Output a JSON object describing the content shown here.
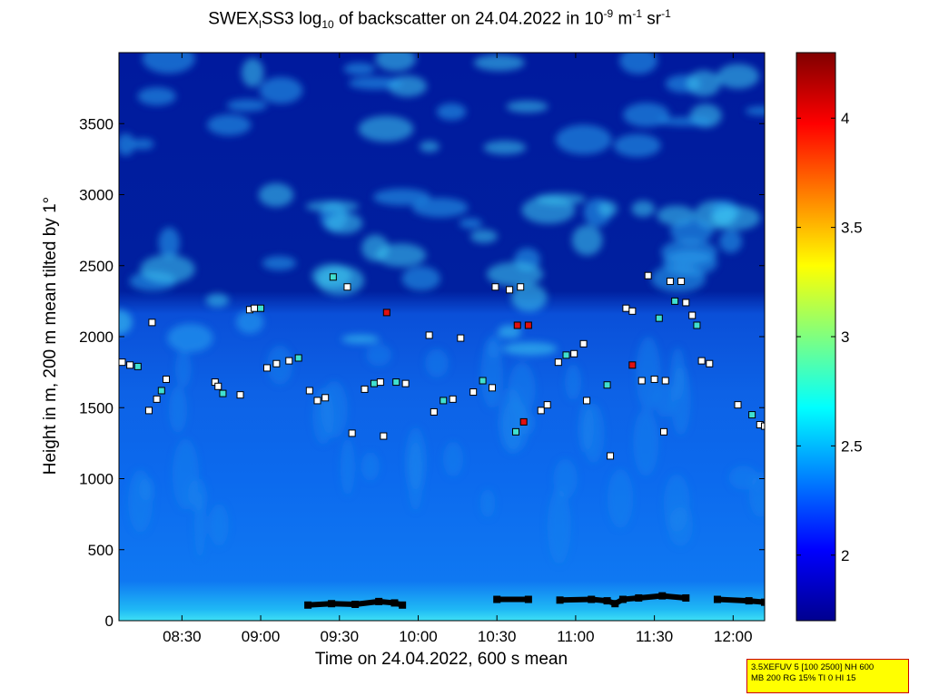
{
  "chart_data": {
    "type": "heatmap",
    "title_parts": {
      "a": "SWEX",
      "a_sub": "l",
      "b": "SS3 log",
      "b_sub": "10",
      "c": " of backscatter on 24.04.2022 in 10",
      "c_sup": "-9",
      "d": " m",
      "d_sup": "-1",
      "e": " sr",
      "e_sup": "-1"
    },
    "xlabel": "Time on 24.04.2022, 600 s mean",
    "ylabel": "Height in m, 200 m mean tilted by 1°",
    "x_ticks": [
      "08:30",
      "09:00",
      "09:30",
      "10:00",
      "10:30",
      "11:00",
      "11:30",
      "12:00"
    ],
    "x_tick_hours": [
      8.5,
      9.0,
      9.5,
      10.0,
      10.5,
      11.0,
      11.5,
      12.0
    ],
    "xlim_hours": [
      8.1,
      12.2
    ],
    "y_ticks": [
      0,
      500,
      1000,
      1500,
      2000,
      2500,
      3000,
      3500
    ],
    "ylim": [
      0,
      4000
    ],
    "colorbar": {
      "ticks": [
        "2",
        "2.5",
        "3",
        "3.5",
        "4"
      ],
      "tick_values": [
        2,
        2.5,
        3,
        3.5,
        4
      ],
      "range": [
        1.7,
        4.3
      ],
      "colormap": "jet"
    },
    "regions": [
      {
        "from_m": 2200,
        "to_m": 4000,
        "value": 1.8
      },
      {
        "from_m": 1600,
        "to_m": 2200,
        "value": 2.3
      },
      {
        "from_m": 200,
        "to_m": 1600,
        "value": 2.35
      },
      {
        "from_m": 0,
        "to_m": 200,
        "value": 2.5
      }
    ],
    "series": [
      {
        "marker": "cloud base",
        "points": [
          [
            8.12,
            1820
          ],
          [
            8.17,
            1800
          ],
          [
            8.22,
            1790
          ],
          [
            8.29,
            1480
          ],
          [
            8.31,
            2100
          ],
          [
            8.34,
            1560
          ],
          [
            8.37,
            1620
          ],
          [
            8.4,
            1700
          ],
          [
            8.71,
            1680
          ],
          [
            8.73,
            1650
          ],
          [
            8.76,
            1600
          ],
          [
            8.87,
            1590
          ],
          [
            8.93,
            2190
          ],
          [
            8.96,
            2200
          ],
          [
            9.0,
            2200
          ],
          [
            9.04,
            1780
          ],
          [
            9.1,
            1810
          ],
          [
            9.18,
            1830
          ],
          [
            9.24,
            1850
          ],
          [
            9.31,
            1620
          ],
          [
            9.36,
            1550
          ],
          [
            9.41,
            1570
          ],
          [
            9.46,
            2420
          ],
          [
            9.55,
            2350
          ],
          [
            9.58,
            1320
          ],
          [
            9.66,
            1630
          ],
          [
            9.72,
            1670
          ],
          [
            9.76,
            1680
          ],
          [
            9.78,
            1300
          ],
          [
            9.8,
            2170
          ],
          [
            9.86,
            1680
          ],
          [
            9.92,
            1670
          ],
          [
            10.07,
            2010
          ],
          [
            10.1,
            1470
          ],
          [
            10.16,
            1550
          ],
          [
            10.22,
            1560
          ],
          [
            10.27,
            1990
          ],
          [
            10.35,
            1610
          ],
          [
            10.41,
            1690
          ],
          [
            10.47,
            1640
          ],
          [
            10.49,
            2350
          ],
          [
            10.58,
            2330
          ],
          [
            10.62,
            1330
          ],
          [
            10.63,
            2080
          ],
          [
            10.65,
            2350
          ],
          [
            10.67,
            1400
          ],
          [
            10.7,
            2080
          ],
          [
            10.78,
            1480
          ],
          [
            10.82,
            1520
          ],
          [
            10.89,
            1820
          ],
          [
            10.94,
            1870
          ],
          [
            10.99,
            1880
          ],
          [
            11.05,
            1950
          ],
          [
            11.07,
            1550
          ],
          [
            11.2,
            1660
          ],
          [
            11.22,
            1160
          ],
          [
            11.32,
            2200
          ],
          [
            11.36,
            2180
          ],
          [
            11.36,
            1800
          ],
          [
            11.42,
            1690
          ],
          [
            11.46,
            2430
          ],
          [
            11.5,
            1700
          ],
          [
            11.53,
            2130
          ],
          [
            11.56,
            1330
          ],
          [
            11.57,
            1690
          ],
          [
            11.6,
            2390
          ],
          [
            11.63,
            2250
          ],
          [
            11.67,
            2390
          ],
          [
            11.7,
            2240
          ],
          [
            11.74,
            2150
          ],
          [
            11.77,
            2080
          ],
          [
            11.8,
            1830
          ],
          [
            11.85,
            1810
          ],
          [
            12.03,
            1520
          ],
          [
            12.12,
            1450
          ],
          [
            12.17,
            1380
          ],
          [
            12.2,
            1370
          ]
        ]
      },
      {
        "marker": "near-ground layer",
        "points": [
          [
            9.3,
            110
          ],
          [
            9.45,
            120
          ],
          [
            9.6,
            115
          ],
          [
            9.75,
            135
          ],
          [
            9.85,
            125
          ],
          [
            9.9,
            110
          ],
          [
            10.5,
            150
          ],
          [
            10.7,
            150
          ],
          [
            10.9,
            145
          ],
          [
            11.1,
            150
          ],
          [
            11.2,
            140
          ],
          [
            11.25,
            120
          ],
          [
            11.3,
            150
          ],
          [
            11.4,
            160
          ],
          [
            11.55,
            175
          ],
          [
            11.7,
            160
          ],
          [
            11.9,
            150
          ],
          [
            12.1,
            140
          ],
          [
            12.2,
            130
          ]
        ]
      }
    ]
  },
  "info_box": {
    "line1": "3.5XEFUV 5 [100 2500] NH 600",
    "line2": "MB 200 RG 15% TI 0 HI 15"
  }
}
